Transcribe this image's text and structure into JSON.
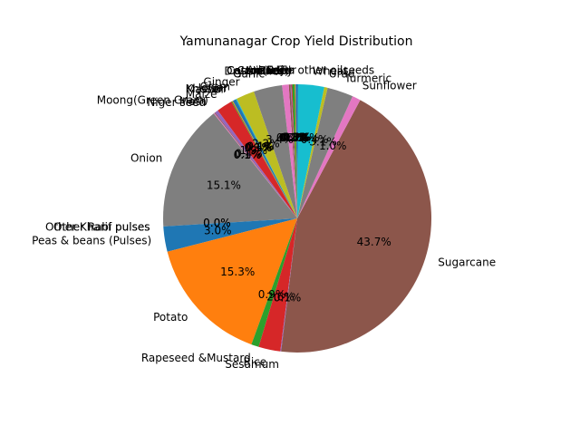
{
  "chart_data": {
    "type": "pie",
    "title": "Yamunanagar Crop Yield Distribution",
    "start_angle_deg": 90,
    "counterclock": true,
    "slices": [
      {
        "label": "Arhar/Tur",
        "value": 0.2,
        "pct_label": "0.2%",
        "color": "#1f77b4"
      },
      {
        "label": "Bajra",
        "value": 0.1,
        "pct_label": "0.1%",
        "color": "#ff7f0e"
      },
      {
        "label": "Barley",
        "value": 0.3,
        "pct_label": "0.3%",
        "color": "#2ca02c"
      },
      {
        "label": "Castor seed",
        "value": 0.1,
        "pct_label": "0.1%",
        "color": "#d62728"
      },
      {
        "label": "Coriander",
        "value": 0.1,
        "pct_label": "0.1%",
        "color": "#9467bd"
      },
      {
        "label": "Cotton(lint)",
        "value": 0.2,
        "pct_label": "0.2%",
        "color": "#8c564b"
      },
      {
        "label": "Dry chillies",
        "value": 0.8,
        "pct_label": "0.8%",
        "color": "#e377c2"
      },
      {
        "label": "Garlic",
        "value": 3.4,
        "pct_label": "3.4%",
        "color": "#7f7f7f"
      },
      {
        "label": "Ginger",
        "value": 2.2,
        "pct_label": "2.2%",
        "color": "#bcbd22"
      },
      {
        "label": "Gram",
        "value": 0.1,
        "pct_label": "0.1%",
        "color": "#17becf"
      },
      {
        "label": "Jowar",
        "value": 0.4,
        "pct_label": "0.4%",
        "color": "#1f77b4"
      },
      {
        "label": "Khesari",
        "value": 0.1,
        "pct_label": "0.1%",
        "color": "#ff7f0e"
      },
      {
        "label": "Masoor",
        "value": 0.1,
        "pct_label": "0.1%",
        "color": "#2ca02c"
      },
      {
        "label": "Maize",
        "value": 1.9,
        "pct_label": "1.9%",
        "color": "#d62728"
      },
      {
        "label": "Moong(Green Gram)",
        "value": 0.4,
        "pct_label": "0.4%",
        "color": "#9467bd"
      },
      {
        "label": "Moth",
        "value": 0.1,
        "pct_label": "0.1%",
        "color": "#8c564b"
      },
      {
        "label": "Niger seed",
        "value": 0.1,
        "pct_label": "0.1%",
        "color": "#e377c2"
      },
      {
        "label": "Onion",
        "value": 15.1,
        "pct_label": "15.1%",
        "color": "#7f7f7f"
      },
      {
        "label": "Other Kharif pulses",
        "value": 0.0,
        "pct_label": "0.0%",
        "color": "#bcbd22"
      },
      {
        "label": "Other Rabi pulses",
        "value": 0.0,
        "pct_label": "0.0%",
        "color": "#17becf"
      },
      {
        "label": "Peas & beans (Pulses)",
        "value": 3.0,
        "pct_label": "3.0%",
        "color": "#1f77b4"
      },
      {
        "label": "Potato",
        "value": 15.3,
        "pct_label": "15.3%",
        "color": "#ff7f0e"
      },
      {
        "label": "Rapeseed &Mustard",
        "value": 0.9,
        "pct_label": "0.9%",
        "color": "#2ca02c"
      },
      {
        "label": "Rice",
        "value": 2.6,
        "pct_label": "2.6%",
        "color": "#d62728"
      },
      {
        "label": "Sesamum",
        "value": 0.1,
        "pct_label": "0.1%",
        "color": "#9467bd"
      },
      {
        "label": "Sugarcane",
        "value": 43.7,
        "pct_label": "43.7%",
        "color": "#8c564b"
      },
      {
        "label": "Sunflower",
        "value": 1.0,
        "pct_label": "1.0%",
        "color": "#e377c2"
      },
      {
        "label": "Turmeric",
        "value": 3.1,
        "pct_label": "3.1%",
        "color": "#7f7f7f"
      },
      {
        "label": "Urad",
        "value": 0.4,
        "pct_label": "0.4%",
        "color": "#bcbd22"
      },
      {
        "label": "Wheat",
        "value": 3.1,
        "pct_label": "3.1%",
        "color": "#17becf"
      },
      {
        "label": "other oilseeds",
        "value": 0.1,
        "pct_label": "0.1%",
        "color": "#1f77b4"
      }
    ]
  }
}
